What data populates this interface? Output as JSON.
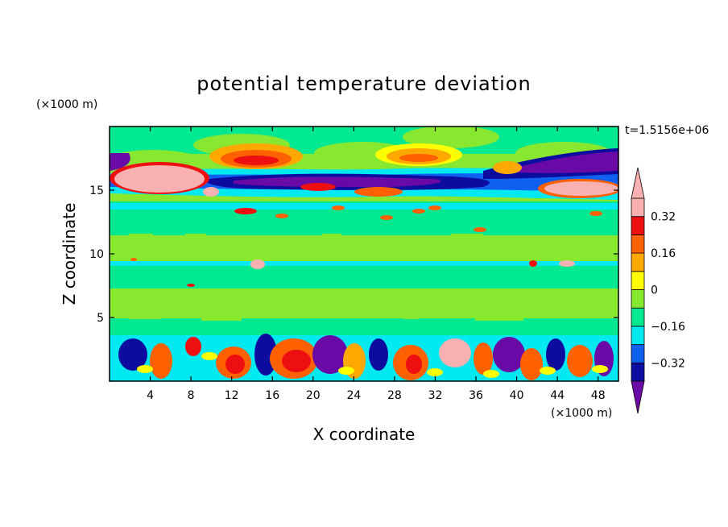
{
  "chart_data": {
    "type": "heatmap",
    "title": "potential temperature deviation",
    "xlabel": "X coordinate",
    "ylabel": "Z coordinate",
    "x_unit": "(×1000 m)",
    "y_unit": "(×1000 m)",
    "time_label": "t=1.5156e+06",
    "xlim": [
      0,
      50
    ],
    "ylim": [
      0,
      20
    ],
    "x_ticks": [
      4,
      8,
      12,
      16,
      20,
      24,
      28,
      32,
      36,
      40,
      44,
      48
    ],
    "x_tick_labels": [
      "4",
      "8",
      "12",
      "16",
      "20",
      "24",
      "28",
      "32",
      "36",
      "40",
      "44",
      "48"
    ],
    "y_ticks": [
      5,
      10,
      15
    ],
    "y_tick_labels": [
      "5",
      "10",
      "15"
    ],
    "colorbar": {
      "levels": [
        -0.4,
        -0.32,
        -0.24,
        -0.16,
        -0.08,
        0,
        0.08,
        0.16,
        0.24,
        0.32,
        0.4
      ],
      "labeled_levels": [
        -0.32,
        -0.16,
        0,
        0.16,
        0.32
      ],
      "labels": [
        "-0.32",
        "-0.16",
        "0",
        "0.16",
        "0.32"
      ],
      "colors": [
        "#6a0aa6",
        "#0c0c9e",
        "#1060f0",
        "#00e8f0",
        "#00e890",
        "#88e830",
        "#ffff00",
        "#ffa800",
        "#ff6000",
        "#ee1010",
        "#f8b0b0"
      ],
      "extend": "both"
    }
  }
}
